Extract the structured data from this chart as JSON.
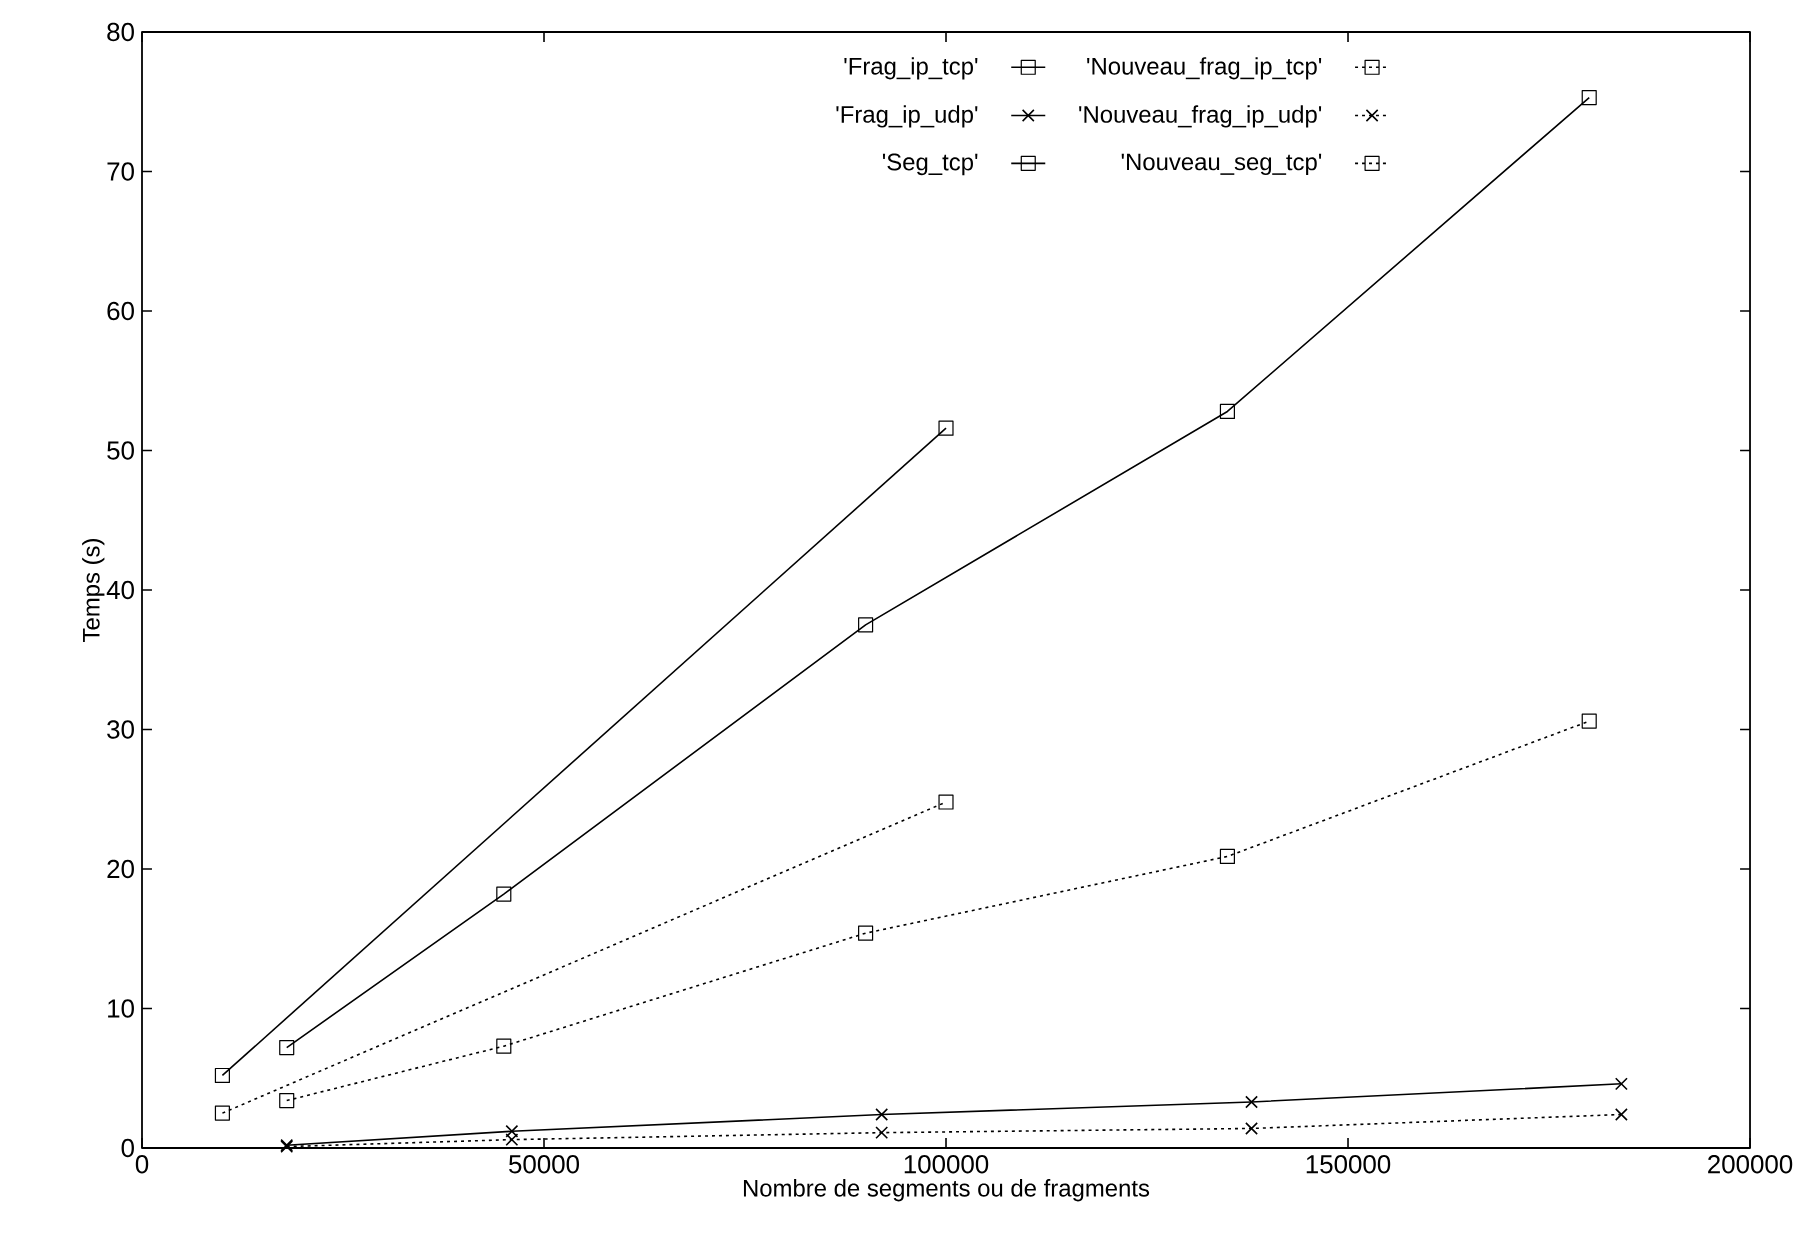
{
  "chart_data": {
    "type": "line",
    "xlabel": "Nombre de segments ou de fragments",
    "ylabel": "Temps (s)",
    "xlim": [
      0,
      200000
    ],
    "ylim": [
      0,
      80
    ],
    "xticks": [
      0,
      50000,
      100000,
      150000,
      200000
    ],
    "yticks": [
      0,
      10,
      20,
      30,
      40,
      50,
      60,
      70,
      80
    ],
    "grid": false,
    "legend": "top right",
    "series": [
      {
        "name": "'Frag_ip_tcp'",
        "color": "#000000",
        "marker": "square",
        "line_style": "solid",
        "x": [
          18000,
          45000,
          90000,
          135000,
          180000
        ],
        "values": [
          7.2,
          18.2,
          37.5,
          52.8,
          75.3
        ]
      },
      {
        "name": "'Nouveau_frag_ip_tcp'",
        "color": "#000000",
        "marker": "square",
        "line_style": "dotted",
        "x": [
          18000,
          45000,
          90000,
          135000,
          180000
        ],
        "values": [
          3.4,
          7.3,
          15.4,
          20.9,
          30.6
        ]
      },
      {
        "name": "'Frag_ip_udp'",
        "color": "#000000",
        "marker": "cross",
        "line_style": "solid",
        "x": [
          18000,
          46000,
          92000,
          138000,
          184000
        ],
        "values": [
          0.2,
          1.2,
          2.4,
          3.3,
          4.6
        ]
      },
      {
        "name": "'Nouveau_frag_ip_udp'",
        "color": "#000000",
        "marker": "cross",
        "line_style": "dotted",
        "x": [
          18000,
          46000,
          92000,
          138000,
          184000
        ],
        "values": [
          0.1,
          0.6,
          1.1,
          1.4,
          2.4
        ]
      },
      {
        "name": "'Seg_tcp'",
        "color": "#000000",
        "marker": "square",
        "line_style": "solid",
        "x": [
          10000,
          100000
        ],
        "values": [
          5.2,
          51.6
        ]
      },
      {
        "name": "'Nouveau_seg_tcp'",
        "color": "#000000",
        "marker": "square",
        "line_style": "dotted",
        "x": [
          10000,
          100000
        ],
        "values": [
          2.5,
          24.8
        ]
      }
    ]
  }
}
